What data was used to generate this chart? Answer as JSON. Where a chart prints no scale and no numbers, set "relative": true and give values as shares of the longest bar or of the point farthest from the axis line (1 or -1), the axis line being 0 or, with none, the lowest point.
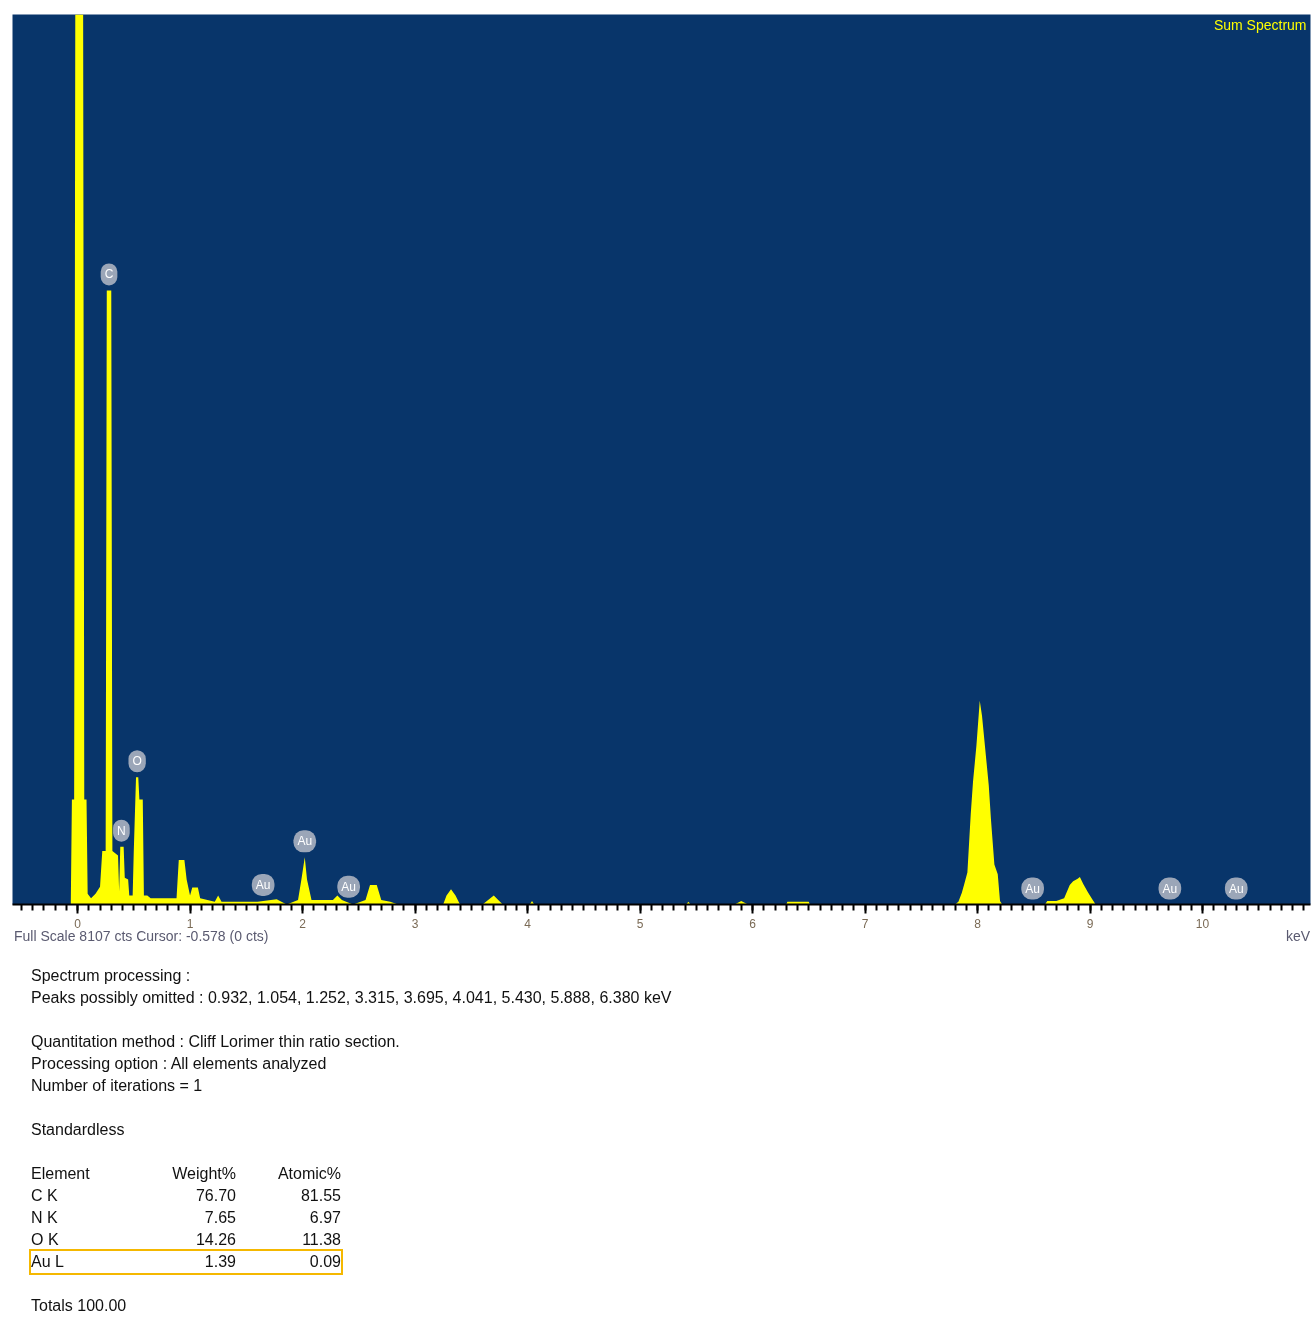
{
  "chart_data": {
    "type": "area",
    "relative": true,
    "xlabel": "keV",
    "xlim": [
      -0.578,
      10.96
    ],
    "xticks": [
      0,
      1,
      2,
      3,
      4,
      5,
      6,
      7,
      8,
      9,
      10
    ],
    "grid": false,
    "series": [
      {
        "color": "#ffff00",
        "x": [
          -0.578,
          -0.06,
          -0.05,
          -0.03,
          -0.02,
          0.05,
          0.06,
          0.08,
          0.09,
          0.12,
          0.16,
          0.2,
          0.22,
          0.25,
          0.26,
          0.3,
          0.31,
          0.36,
          0.37,
          0.38,
          0.41,
          0.42,
          0.45,
          0.46,
          0.49,
          0.5,
          0.52,
          0.54,
          0.55,
          0.58,
          0.59,
          0.62,
          0.65,
          0.88,
          0.9,
          0.95,
          0.97,
          1.0,
          1.02,
          1.07,
          1.09,
          1.22,
          1.25,
          1.28,
          1.6,
          1.65,
          1.77,
          1.86,
          1.96,
          1.99,
          2.02,
          2.04,
          2.08,
          2.12,
          2.27,
          2.31,
          2.35,
          2.41,
          2.45,
          2.56,
          2.6,
          2.66,
          2.7,
          2.78,
          2.85,
          3.25,
          3.28,
          3.32,
          3.36,
          3.4,
          3.6,
          3.65,
          3.7,
          3.74,
          3.78,
          4.02,
          4.04,
          4.06,
          5.41,
          5.43,
          5.45,
          5.84,
          5.9,
          5.96,
          6.3,
          6.31,
          6.5,
          6.51,
          7.8,
          7.83,
          7.86,
          7.88,
          7.91,
          7.94,
          7.96,
          7.99,
          8.02,
          8.04,
          8.07,
          8.1,
          8.12,
          8.15,
          8.18,
          8.2,
          8.22,
          8.6,
          8.62,
          8.66,
          8.7,
          8.77,
          8.82,
          8.85,
          8.89,
          8.91,
          8.94,
          8.98,
          9.02,
          9.05,
          10.96
        ],
        "values": [
          0,
          0,
          0.118,
          0.118,
          1,
          1,
          0.118,
          0.118,
          0.012,
          0.007,
          0.012,
          0.02,
          0.06,
          0.06,
          0.69,
          0.69,
          0.06,
          0.055,
          0.015,
          0.065,
          0.065,
          0.03,
          0.028,
          0.01,
          0.01,
          0.06,
          0.143,
          0.143,
          0.118,
          0.118,
          0.01,
          0.01,
          0.007,
          0.007,
          0.05,
          0.05,
          0.028,
          0.01,
          0.019,
          0.019,
          0.007,
          0.003,
          0.01,
          0.003,
          0.003,
          0.004,
          0.006,
          0,
          0.005,
          0.028,
          0.053,
          0.028,
          0.005,
          0.005,
          0.005,
          0.01,
          0.005,
          0.002,
          0,
          0.005,
          0.022,
          0.022,
          0.005,
          0.003,
          0,
          0,
          0.01,
          0.017,
          0.01,
          0,
          0,
          0.005,
          0.01,
          0.005,
          0,
          0,
          0.004,
          0,
          0,
          0.003,
          0,
          0,
          0.004,
          0,
          0,
          0.003,
          0.003,
          0,
          0,
          0.003,
          0.013,
          0.022,
          0.036,
          0.102,
          0.138,
          0.178,
          0.229,
          0.212,
          0.173,
          0.134,
          0.095,
          0.045,
          0.034,
          0.004,
          0,
          0,
          0.004,
          0.004,
          0.004,
          0.007,
          0.022,
          0.026,
          0.029,
          0.031,
          0.023,
          0.014,
          0.006,
          0,
          0
        ]
      }
    ],
    "annotations": [
      "Sum Spectrum",
      "Full Scale 8107 cts Cursor: -0.578  (0 cts)",
      {
        "text": "C",
        "x": 0.28,
        "y": 0.69
      },
      {
        "text": "N",
        "x": 0.39,
        "y": 0.065
      },
      {
        "text": "O",
        "x": 0.53,
        "y": 0.143
      },
      {
        "text": "Au",
        "x": 1.65,
        "y": 0.004
      },
      {
        "text": "Au",
        "x": 2.02,
        "y": 0.053
      },
      {
        "text": "Au",
        "x": 2.41,
        "y": 0.002
      },
      {
        "text": "Au",
        "x": 8.49,
        "y": 0
      },
      {
        "text": "Au",
        "x": 9.71,
        "y": 0
      },
      {
        "text": "Au",
        "x": 10.3,
        "y": 0
      },
      "Spectrum processing :\nPeaks possibly omitted : 0.932, 1.054, 1.252, 3.315, 3.695, 4.041, 5.430, 5.888, 6.380 keV",
      "Quantitation method : Cliff Lorimer thin ratio section.\nProcessing option : All elements analyzed\nNumber of iterations = 1",
      "Standardless",
      "Element  Weight%  Atomic%\nC K  76.70  81.55\nN K  7.65  6.97\nO K  14.26  11.38\nAu L  1.39  0.09",
      "Totals  100.00"
    ]
  }
}
